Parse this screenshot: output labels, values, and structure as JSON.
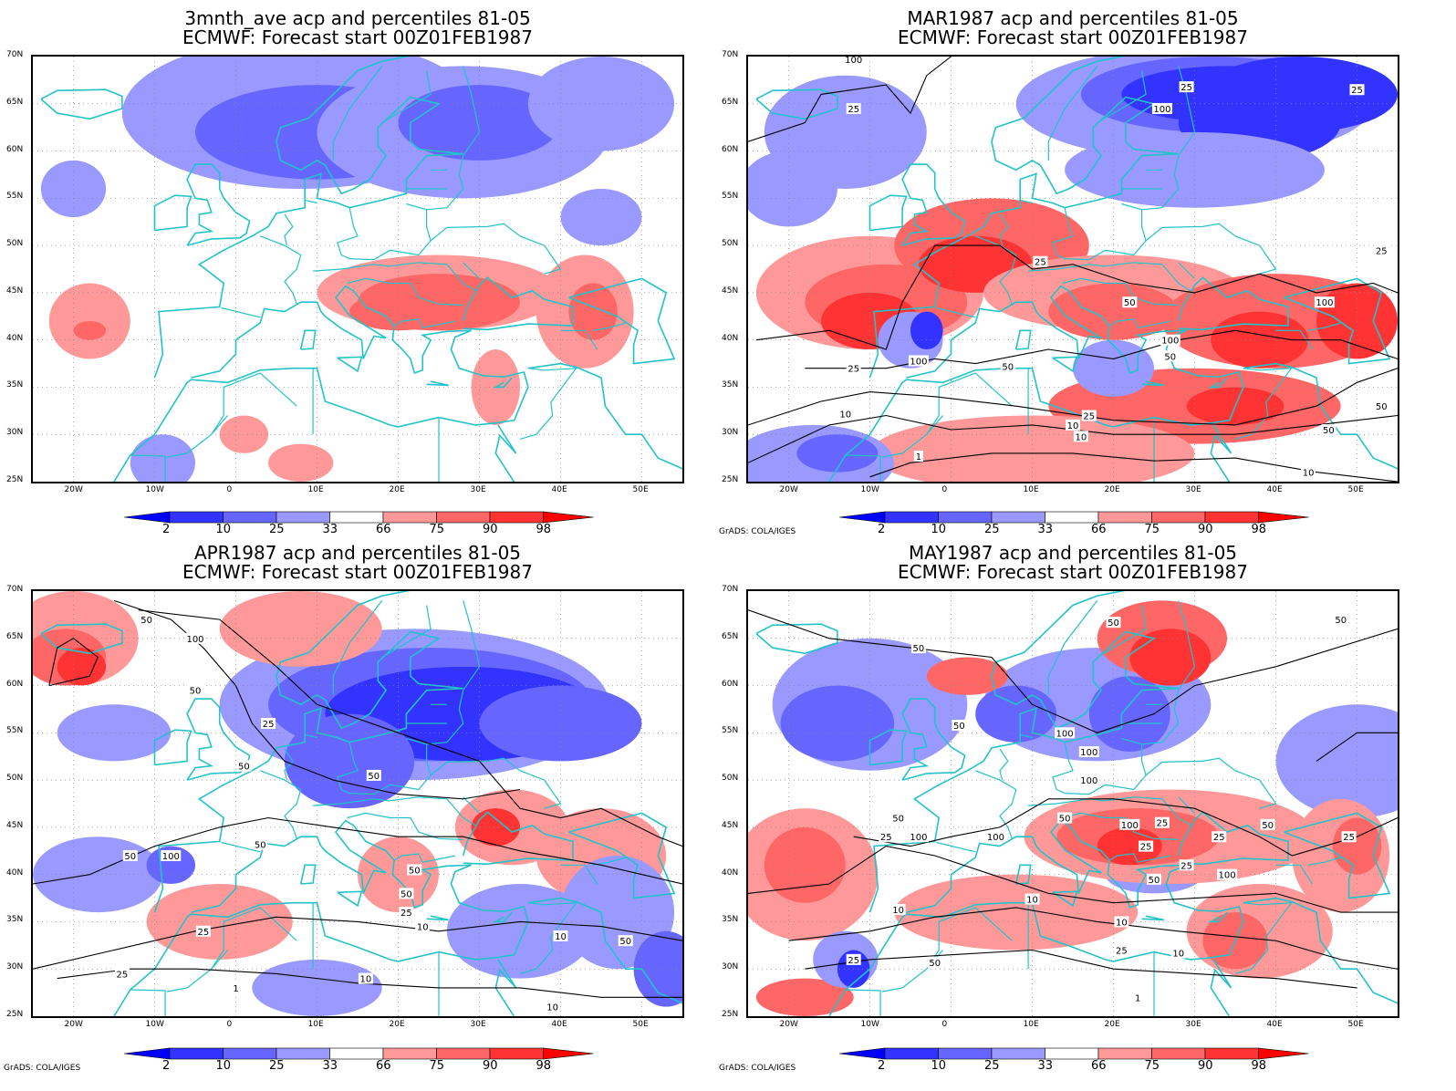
{
  "credit": "GrADS: COLA/IGES",
  "lat_labels": [
    "70N",
    "65N",
    "60N",
    "55N",
    "50N",
    "45N",
    "40N",
    "35N",
    "30N",
    "25N"
  ],
  "lon_labels": [
    "20W",
    "10W",
    "0",
    "10E",
    "20E",
    "30E",
    "40E",
    "50E"
  ],
  "colorbar": {
    "labels": [
      "2",
      "10",
      "25",
      "33",
      "66",
      "75",
      "90",
      "98"
    ],
    "colors": [
      "#0000ff",
      "#3333ff",
      "#6666ff",
      "#9999ff",
      "#ffffff",
      "#ff9999",
      "#ff6666",
      "#ff3333",
      "#ff0000"
    ]
  },
  "map_colors": {
    "coast": "#22c3c8",
    "contour": "#000000",
    "grid": "#888888"
  },
  "panels": [
    {
      "title_1": "3mnth_ave acp and percentiles 81-05",
      "title_2": "ECMWF: Forecast start 00Z01FEB1987",
      "contour_labels": []
    },
    {
      "title_1": "MAR1987 acp and percentiles 81-05",
      "title_2": "ECMWF: Forecast start 00Z01FEB1987",
      "contour_labels": [
        "100",
        "25",
        "25",
        "25",
        "100",
        "100",
        "25",
        "100",
        "50",
        "100",
        "50",
        "100",
        "25",
        "50",
        "10",
        "25",
        "10",
        "50",
        "10",
        "1",
        "25",
        "10",
        "50"
      ]
    },
    {
      "title_1": "APR1987 acp and percentiles 81-05",
      "title_2": "ECMWF: Forecast start 00Z01FEB1987",
      "contour_labels": [
        "50",
        "100",
        "50",
        "25",
        "50",
        "50",
        "50",
        "100",
        "50",
        "50",
        "50",
        "25",
        "25",
        "10",
        "10",
        "50",
        "25",
        "10",
        "1",
        "10"
      ]
    },
    {
      "title_1": "MAY1987 acp and percentiles 81-05",
      "title_2": "ECMWF: Forecast start 00Z01FEB1987",
      "contour_labels": [
        "50",
        "50",
        "50",
        "50",
        "100",
        "100",
        "100",
        "50",
        "25",
        "100",
        "100",
        "50",
        "100",
        "25",
        "50",
        "25",
        "25",
        "100",
        "25",
        "25",
        "50",
        "10",
        "10",
        "25",
        "25",
        "50",
        "10",
        "1",
        "10"
      ]
    }
  ]
}
